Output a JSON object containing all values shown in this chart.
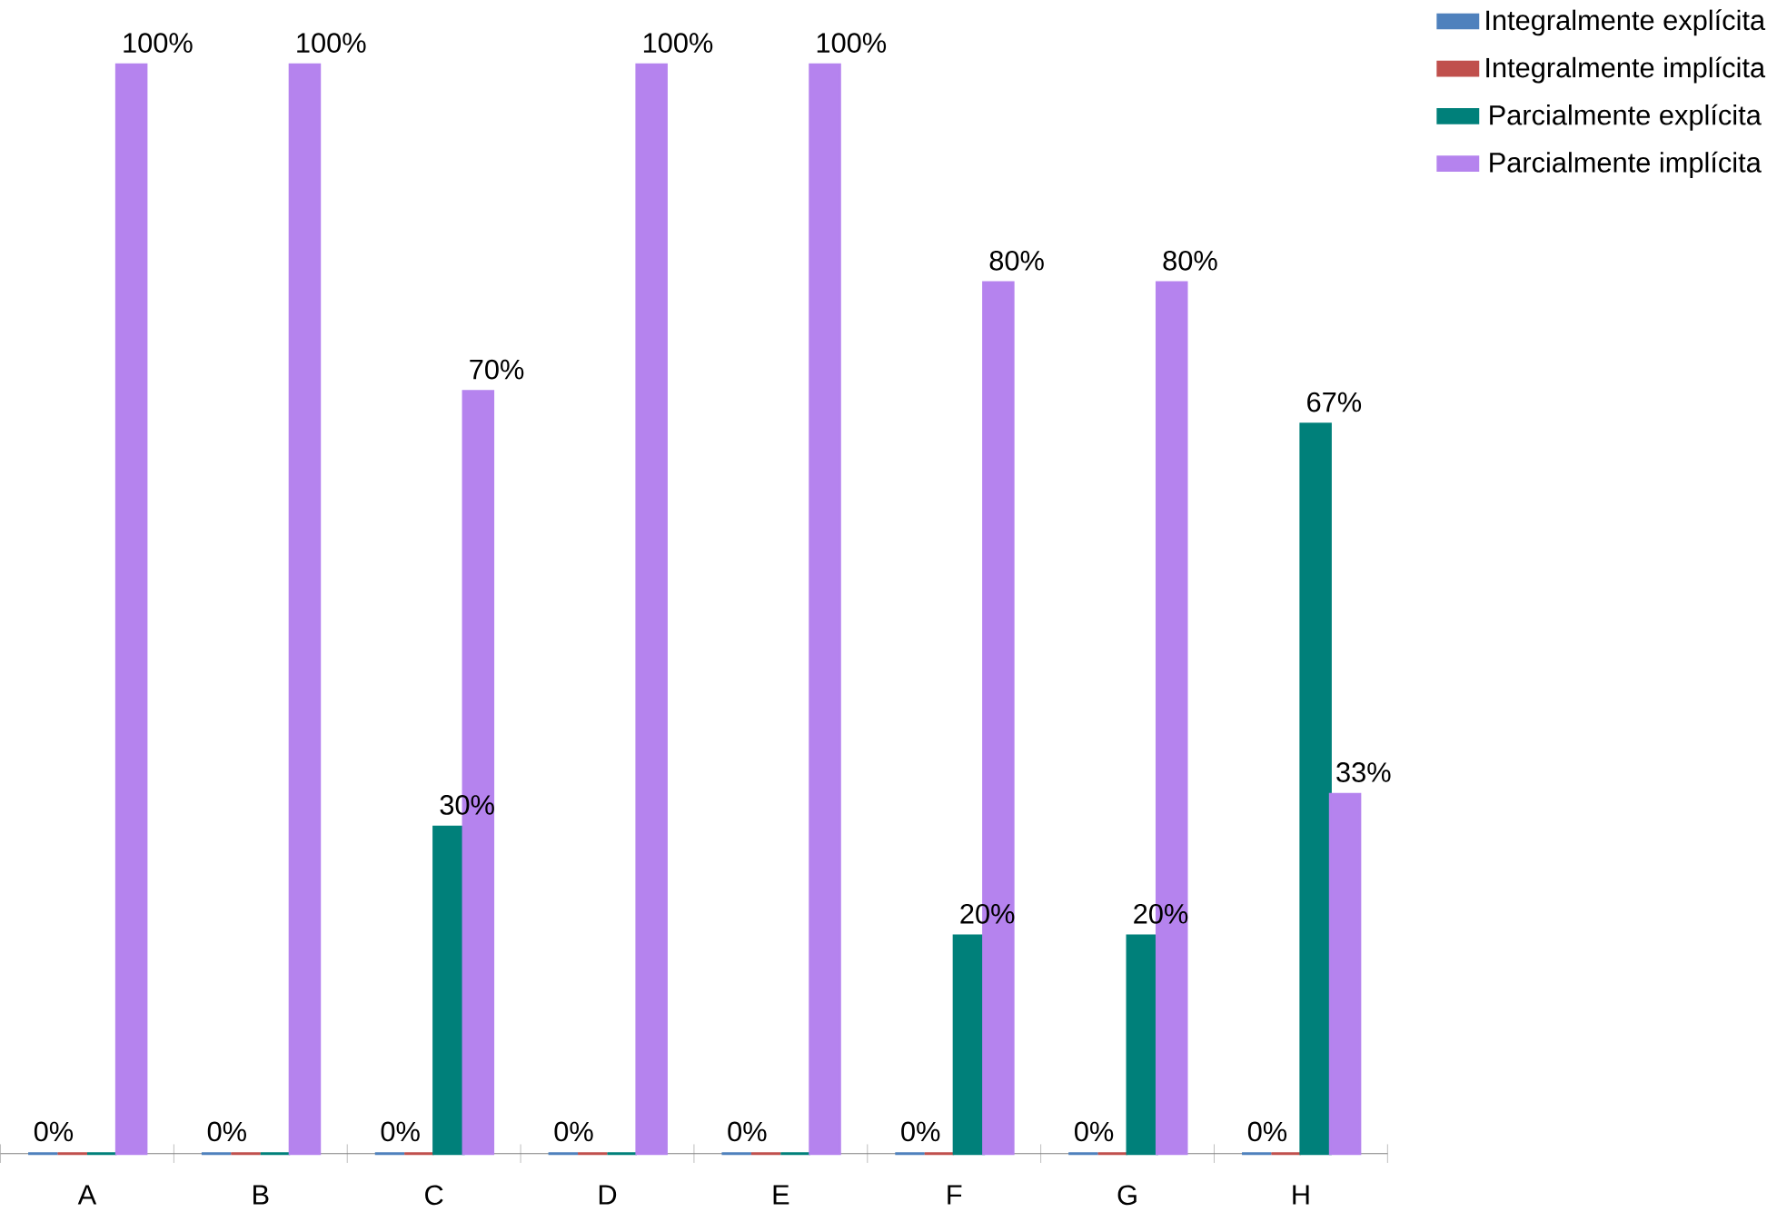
{
  "chart_data": {
    "type": "bar",
    "categories": [
      "A",
      "B",
      "C",
      "D",
      "E",
      "F",
      "G",
      "H"
    ],
    "series": [
      {
        "name": "Integralmente explícita",
        "color": "#4f81bd",
        "values": [
          0,
          0,
          0,
          0,
          0,
          0,
          0,
          0
        ],
        "value_labels": [
          "0%",
          "0%",
          "0%",
          "0%",
          "0%",
          "0%",
          "0%",
          "0%"
        ]
      },
      {
        "name": "Integralmente implícita",
        "color": "#c0504d",
        "values": [
          0,
          0,
          0,
          0,
          0,
          0,
          0,
          0
        ],
        "value_labels": [
          null,
          null,
          null,
          null,
          null,
          null,
          null,
          null
        ]
      },
      {
        "name": "Parcialmente explícita",
        "color": "#00807a",
        "values": [
          0,
          0,
          30,
          0,
          0,
          20,
          20,
          67
        ],
        "value_labels": [
          null,
          null,
          "30%",
          null,
          null,
          "20%",
          "20%",
          "67%"
        ]
      },
      {
        "name": "Parcialmente implícita",
        "color": "#b583ee",
        "values": [
          100,
          100,
          70,
          100,
          100,
          80,
          80,
          33
        ],
        "value_labels": [
          "100%",
          "100%",
          "70%",
          "100%",
          "100%",
          "80%",
          "80%",
          "33%"
        ]
      }
    ],
    "legend": "right",
    "grid": false
  }
}
